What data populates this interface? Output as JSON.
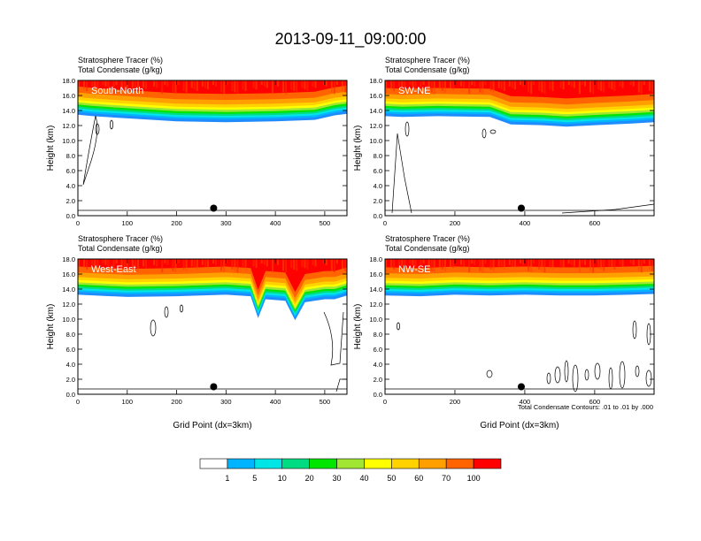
{
  "title": "2013-09-11_09:00:00",
  "colors": {
    "levels": [
      "#ffffff",
      "#1e8cff",
      "#00b4ff",
      "#00e6e6",
      "#00dc82",
      "#00e600",
      "#a0e632",
      "#ffff00",
      "#ffd200",
      "#ffa000",
      "#ff6400",
      "#ff0000"
    ],
    "contour": "#000000"
  },
  "chart_data": [
    {
      "type": "contour",
      "panel_label": "South-North",
      "subtitle_1": "Stratosphere Tracer   (%)",
      "subtitle_2": "Total Condensate   (g/kg)",
      "ylabel": "Height (km)",
      "xlabel": "",
      "xlim": [
        0,
        545
      ],
      "ylim": [
        0,
        18
      ],
      "x_ticks": [
        "0",
        "100",
        "200",
        "300",
        "400",
        "500"
      ],
      "x_tick_values": [
        0,
        100,
        200,
        300,
        400,
        500
      ],
      "y_ticks": [
        "0.0",
        "2.0",
        "4.0",
        "6.0",
        "8.0",
        "10.0",
        "12.0",
        "14.0",
        "16.0",
        "18.0"
      ],
      "tropopause_km": [
        [
          0,
          13.8
        ],
        [
          30,
          13.6
        ],
        [
          100,
          13.3
        ],
        [
          200,
          12.9
        ],
        [
          300,
          12.8
        ],
        [
          400,
          12.9
        ],
        [
          480,
          13.1
        ],
        [
          520,
          13.7
        ],
        [
          545,
          13.9
        ]
      ],
      "marker": {
        "x": 275,
        "y": 1.0
      }
    },
    {
      "type": "contour",
      "panel_label": "SW-NE",
      "subtitle_1": "Stratosphere Tracer   (%)",
      "subtitle_2": "Total Condensate   (g/kg)",
      "ylabel": "Height (km)",
      "xlabel": "",
      "xlim": [
        0,
        770
      ],
      "ylim": [
        0,
        18
      ],
      "x_ticks": [
        "0",
        "200",
        "400",
        "600"
      ],
      "x_tick_values": [
        0,
        200,
        400,
        600
      ],
      "y_ticks": [
        "0.0",
        "2.0",
        "4.0",
        "6.0",
        "8.0",
        "10.0",
        "12.0",
        "14.0",
        "16.0",
        "18.0"
      ],
      "tropopause_km": [
        [
          0,
          13.6
        ],
        [
          50,
          13.5
        ],
        [
          150,
          13.6
        ],
        [
          300,
          13.5
        ],
        [
          360,
          12.5
        ],
        [
          450,
          12.4
        ],
        [
          520,
          12.2
        ],
        [
          600,
          12.4
        ],
        [
          700,
          12.6
        ],
        [
          770,
          12.8
        ]
      ],
      "marker": {
        "x": 390,
        "y": 1.0
      }
    },
    {
      "type": "contour",
      "panel_label": "West-East",
      "subtitle_1": "Stratosphere Tracer   (%)",
      "subtitle_2": "Total Condensate   (g/kg)",
      "ylabel": "Height (km)",
      "xlabel": "Grid Point (dx=3km)",
      "xlim": [
        0,
        545
      ],
      "ylim": [
        0,
        18
      ],
      "x_ticks": [
        "0",
        "100",
        "200",
        "300",
        "400",
        "500"
      ],
      "x_tick_values": [
        0,
        100,
        200,
        300,
        400,
        500
      ],
      "y_ticks": [
        "0.0",
        "2.0",
        "4.0",
        "6.0",
        "8.0",
        "10.0",
        "12.0",
        "14.0",
        "16.0",
        "18.0"
      ],
      "tropopause_km": [
        [
          0,
          13.6
        ],
        [
          100,
          13.3
        ],
        [
          200,
          13.4
        ],
        [
          300,
          13.6
        ],
        [
          350,
          13.4
        ],
        [
          365,
          10.5
        ],
        [
          380,
          13.0
        ],
        [
          420,
          12.8
        ],
        [
          440,
          10.2
        ],
        [
          460,
          12.6
        ],
        [
          500,
          13.0
        ],
        [
          520,
          13.0
        ],
        [
          545,
          13.5
        ]
      ],
      "marker": {
        "x": 275,
        "y": 1.0
      }
    },
    {
      "type": "contour",
      "panel_label": "NW-SE",
      "subtitle_1": "Stratosphere Tracer   (%)",
      "subtitle_2": "Total Condensate   (g/kg)",
      "ylabel": "Height (km)",
      "xlabel": "Grid Point (dx=3km)",
      "xlim": [
        0,
        770
      ],
      "ylim": [
        0,
        18
      ],
      "x_ticks": [
        "0",
        "200",
        "400",
        "600"
      ],
      "x_tick_values": [
        0,
        200,
        400,
        600
      ],
      "y_ticks": [
        "0.0",
        "2.0",
        "4.0",
        "6.0",
        "8.0",
        "10.0",
        "12.0",
        "14.0",
        "16.0",
        "18.0"
      ],
      "tropopause_km": [
        [
          0,
          13.5
        ],
        [
          100,
          13.4
        ],
        [
          200,
          13.6
        ],
        [
          300,
          13.5
        ],
        [
          400,
          13.6
        ],
        [
          500,
          13.5
        ],
        [
          600,
          13.5
        ],
        [
          700,
          13.6
        ],
        [
          770,
          13.7
        ]
      ],
      "marker": {
        "x": 390,
        "y": 1.0
      }
    }
  ],
  "contour_note": "Total Condensate Contours: .01 to .01 by .000",
  "colorbar": {
    "labels": [
      "1",
      "5",
      "10",
      "20",
      "30",
      "40",
      "50",
      "60",
      "70",
      "100"
    ]
  }
}
